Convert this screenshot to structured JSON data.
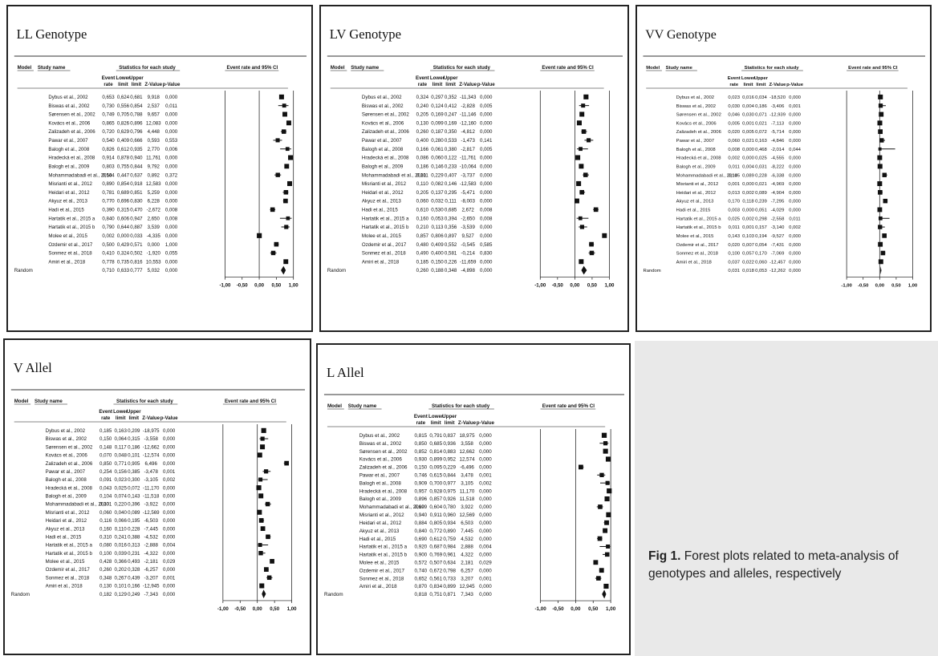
{
  "header": {
    "model": "Model",
    "study_name": "Study name",
    "stats_for_each_study": "Statistics for each study",
    "event_rate_ci": "Event rate and 95% CI",
    "col_event_rate": [
      "Event",
      "rate"
    ],
    "col_lower_limit": [
      "Lower",
      "limit"
    ],
    "col_upper_limit": [
      "Upper",
      "limit"
    ],
    "col_z": "Z-Value",
    "col_p": "p-Value",
    "random_label": "Random",
    "axis_ticks": [
      "-1,00",
      "-0,50",
      "0,00",
      "0,50",
      "1,00"
    ]
  },
  "caption": {
    "label": "Fig 1.",
    "text": "Forest plots related to meta-analysis of genotypes and alleles, respectively"
  },
  "chart_data": [
    {
      "type": "forest",
      "title": "LL Genotype",
      "xlim": [
        -1,
        1
      ],
      "studies": [
        [
          "Dybus et al., 2002",
          "0,653",
          "0,624",
          "0,681",
          "9,918",
          "0,000"
        ],
        [
          "Biswas et al., 2002",
          "0,730",
          "0,556",
          "0,854",
          "2,537",
          "0,011"
        ],
        [
          "Sørensen et al., 2002",
          "0,749",
          "0,705",
          "0,788",
          "9,657",
          "0,000"
        ],
        [
          "Kovács et al., 2006",
          "0,865",
          "0,826",
          "0,896",
          "12,083",
          "0,000"
        ],
        [
          "Zalizadeh et al., 2006",
          "0,720",
          "0,629",
          "0,796",
          "4,448",
          "0,000"
        ],
        [
          "Pawar et al., 2007",
          "0,540",
          "0,409",
          "0,666",
          "0,593",
          "0,553"
        ],
        [
          "Balogh et al., 2008",
          "0,826",
          "0,612",
          "0,935",
          "2,770",
          "0,006"
        ],
        [
          "Hradecká et al., 2008",
          "0,914",
          "0,878",
          "0,940",
          "11,761",
          "0,000"
        ],
        [
          "Balogh et al., 2009",
          "0,803",
          "0,755",
          "0,844",
          "9,792",
          "0,000"
        ],
        [
          "Mohammadabadi et al., 2010",
          "0,544",
          "0,447",
          "0,637",
          "0,892",
          "0,372"
        ],
        [
          "Misrianti et al., 2012",
          "0,890",
          "0,854",
          "0,918",
          "12,583",
          "0,000"
        ],
        [
          "Heidari et al., 2012",
          "0,781",
          "0,689",
          "0,851",
          "5,259",
          "0,000"
        ],
        [
          "Akyuz et al., 2013",
          "0,770",
          "0,696",
          "0,830",
          "6,228",
          "0,000"
        ],
        [
          "Hadi et al., 2015",
          "0,390",
          "0,315",
          "0,470",
          "-2,672",
          "0,008"
        ],
        [
          "Hartatik et al., 2015 a",
          "0,840",
          "0,606",
          "0,947",
          "2,650",
          "0,008"
        ],
        [
          "Hartatik et al., 2015 b",
          "0,790",
          "0,644",
          "0,887",
          "3,539",
          "0,000"
        ],
        [
          "Molee et al., 2015",
          "0,002",
          "0,000",
          "0,033",
          "-4,335",
          "0,000"
        ],
        [
          "Ozdemir et al., 2017",
          "0,500",
          "0,429",
          "0,571",
          "0,000",
          "1,000"
        ],
        [
          "Sonmez et al., 2018",
          "0,410",
          "0,324",
          "0,502",
          "-1,920",
          "0,055"
        ],
        [
          "Amiri et al., 2018",
          "0,778",
          "0,735",
          "0,816",
          "10,553",
          "0,000"
        ]
      ],
      "pooled": [
        "0,710",
        "0,633",
        "0,777",
        "5,032",
        "0,000"
      ]
    },
    {
      "type": "forest",
      "title": "LV Genotype",
      "xlim": [
        -1,
        1
      ],
      "studies": [
        [
          "Dybus et al., 2002",
          "0,324",
          "0,297",
          "0,352",
          "-11,343",
          "0,000"
        ],
        [
          "Biswas et al., 2002",
          "0,240",
          "0,124",
          "0,412",
          "-2,828",
          "0,005"
        ],
        [
          "Sørensen et al., 2002",
          "0,205",
          "0,169",
          "0,247",
          "-11,146",
          "0,000"
        ],
        [
          "Kovács et al., 2006",
          "0,130",
          "0,099",
          "0,169",
          "-12,160",
          "0,000"
        ],
        [
          "Zalizadeh et al., 2006",
          "0,260",
          "0,187",
          "0,350",
          "-4,812",
          "0,000"
        ],
        [
          "Pawar et al., 2007",
          "0,400",
          "0,280",
          "0,533",
          "-1,473",
          "0,141"
        ],
        [
          "Balogh et al., 2008",
          "0,166",
          "0,061",
          "0,380",
          "-2,817",
          "0,005"
        ],
        [
          "Hradecká et al., 2008",
          "0,086",
          "0,060",
          "0,122",
          "-11,761",
          "0,000"
        ],
        [
          "Balogh et al., 2009",
          "0,186",
          "0,146",
          "0,233",
          "-10,064",
          "0,000"
        ],
        [
          "Mohammadabadi et al., 2010",
          "0,311",
          "0,229",
          "0,407",
          "-3,737",
          "0,000"
        ],
        [
          "Misrianti et al., 2012",
          "0,110",
          "0,082",
          "0,146",
          "-12,583",
          "0,000"
        ],
        [
          "Heidari et al., 2012",
          "0,205",
          "0,137",
          "0,295",
          "-5,471",
          "0,000"
        ],
        [
          "Akyuz et al., 2013",
          "0,060",
          "0,032",
          "0,111",
          "-8,003",
          "0,000"
        ],
        [
          "Hadi et al., 2015",
          "0,610",
          "0,530",
          "0,685",
          "2,672",
          "0,008"
        ],
        [
          "Hartatik et al., 2015 a",
          "0,160",
          "0,053",
          "0,394",
          "-2,650",
          "0,008"
        ],
        [
          "Hartatik et al., 2015 b",
          "0,210",
          "0,113",
          "0,356",
          "-3,539",
          "0,000"
        ],
        [
          "Molee et al., 2015",
          "0,857",
          "0,806",
          "0,897",
          "9,527",
          "0,000"
        ],
        [
          "Ozdemir et al., 2017",
          "0,480",
          "0,409",
          "0,552",
          "-0,545",
          "0,585"
        ],
        [
          "Sonmez et al., 2018",
          "0,490",
          "0,400",
          "0,581",
          "-0,214",
          "0,830"
        ],
        [
          "Amiri et al., 2018",
          "0,185",
          "0,150",
          "0,226",
          "-11,659",
          "0,000"
        ]
      ],
      "pooled": [
        "0,260",
        "0,188",
        "0,348",
        "-4,898",
        "0,000"
      ]
    },
    {
      "type": "forest",
      "title": "VV Genotype",
      "xlim": [
        -1,
        1
      ],
      "studies": [
        [
          "Dybus et al., 2002",
          "0,023",
          "0,016",
          "0,034",
          "-18,520",
          "0,000"
        ],
        [
          "Biswas et al., 2002",
          "0,030",
          "0,004",
          "0,186",
          "-3,406",
          "0,001"
        ],
        [
          "Sørensen et al., 2002",
          "0,046",
          "0,030",
          "0,071",
          "-12,939",
          "0,000"
        ],
        [
          "Kovács et al., 2006",
          "0,005",
          "0,001",
          "0,021",
          "-7,113",
          "0,000"
        ],
        [
          "Zalizadeh et al., 2006",
          "0,020",
          "0,005",
          "0,072",
          "-5,714",
          "0,000"
        ],
        [
          "Pawar et al., 2007",
          "0,060",
          "0,021",
          "0,163",
          "-4,846",
          "0,000"
        ],
        [
          "Balogh et al., 2008",
          "0,008",
          "0,000",
          "0,468",
          "-2,014",
          "0,044"
        ],
        [
          "Hradecká et al., 2008",
          "0,002",
          "0,000",
          "0,025",
          "-4,555",
          "0,000"
        ],
        [
          "Balogh et al., 2009",
          "0,011",
          "0,004",
          "0,031",
          "-8,222",
          "0,000"
        ],
        [
          "Mohammadabadi et al., 2010",
          "0,145",
          "0,089",
          "0,228",
          "-6,338",
          "0,000"
        ],
        [
          "Misrianti et al., 2012",
          "0,001",
          "0,000",
          "0,021",
          "-4,969",
          "0,000"
        ],
        [
          "Heidari et al., 2012",
          "0,013",
          "0,002",
          "0,089",
          "-4,904",
          "0,000"
        ],
        [
          "Akyuz et al., 2013",
          "0,170",
          "0,118",
          "0,239",
          "-7,295",
          "0,000"
        ],
        [
          "Hadi et al., 2015",
          "0,003",
          "0,000",
          "0,051",
          "-4,029",
          "0,000"
        ],
        [
          "Hartatik et al., 2015 a",
          "0,025",
          "0,002",
          "0,298",
          "-2,558",
          "0,011"
        ],
        [
          "Hartatik et al., 2015 b",
          "0,011",
          "0,001",
          "0,157",
          "-3,140",
          "0,002"
        ],
        [
          "Molee et al., 2015",
          "0,143",
          "0,103",
          "0,194",
          "-9,527",
          "0,000"
        ],
        [
          "Ozdemir et al., 2017",
          "0,020",
          "0,007",
          "0,054",
          "-7,431",
          "0,000"
        ],
        [
          "Sonmez et al., 2018",
          "0,100",
          "0,057",
          "0,170",
          "-7,069",
          "0,000"
        ],
        [
          "Amiri et al., 2018",
          "0,037",
          "0,022",
          "0,060",
          "-12,457",
          "0,000"
        ]
      ],
      "pooled": [
        "0,031",
        "0,018",
        "0,053",
        "-12,262",
        "0,000"
      ]
    },
    {
      "type": "forest",
      "title": "V Allel",
      "xlim": [
        -1,
        1
      ],
      "studies": [
        [
          "Dybus et al., 2002",
          "0,185",
          "0,163",
          "0,209",
          "-18,975",
          "0,000"
        ],
        [
          "Biswas et al., 2002",
          "0,150",
          "0,064",
          "0,315",
          "-3,558",
          "0,000"
        ],
        [
          "Sørensen et al., 2002",
          "0,148",
          "0,117",
          "0,186",
          "-12,662",
          "0,000"
        ],
        [
          "Kovács et al., 2006",
          "0,070",
          "0,048",
          "0,101",
          "-12,574",
          "0,000"
        ],
        [
          "Zalizadeh et al., 2006",
          "0,850",
          "0,771",
          "0,905",
          "6,496",
          "0,000"
        ],
        [
          "Pawar et al., 2007",
          "0,254",
          "0,156",
          "0,385",
          "-3,478",
          "0,001"
        ],
        [
          "Balogh et al., 2008",
          "0,091",
          "0,023",
          "0,300",
          "-3,105",
          "0,002"
        ],
        [
          "Hradecká et al., 2008",
          "0,043",
          "0,025",
          "0,072",
          "-11,170",
          "0,000"
        ],
        [
          "Balogh et al., 2009",
          "0,104",
          "0,074",
          "0,143",
          "-11,518",
          "0,000"
        ],
        [
          "Mohammadabadi et al., 2010",
          "0,301",
          "0,220",
          "0,396",
          "-3,922",
          "0,000"
        ],
        [
          "Misrianti et al., 2012",
          "0,060",
          "0,040",
          "0,089",
          "-12,569",
          "0,000"
        ],
        [
          "Heidari et al., 2012",
          "0,116",
          "0,066",
          "0,195",
          "-6,503",
          "0,000"
        ],
        [
          "Akyuz et al., 2013",
          "0,160",
          "0,110",
          "0,228",
          "-7,445",
          "0,000"
        ],
        [
          "Hadi et al., 2015",
          "0,310",
          "0,241",
          "0,388",
          "-4,532",
          "0,000"
        ],
        [
          "Hartatik et al., 2015 a",
          "0,080",
          "0,016",
          "0,313",
          "-2,888",
          "0,004"
        ],
        [
          "Hartatik et al., 2015 b",
          "0,100",
          "0,039",
          "0,231",
          "-4,322",
          "0,000"
        ],
        [
          "Molee et al., 2015",
          "0,428",
          "0,366",
          "0,493",
          "-2,181",
          "0,029"
        ],
        [
          "Ozdemir et al., 2017",
          "0,260",
          "0,202",
          "0,328",
          "-6,257",
          "0,000"
        ],
        [
          "Sonmez et al., 2018",
          "0,348",
          "0,267",
          "0,439",
          "-3,207",
          "0,001"
        ],
        [
          "Amiri et al., 2018",
          "0,130",
          "0,101",
          "0,166",
          "-12,945",
          "0,000"
        ]
      ],
      "pooled": [
        "0,182",
        "0,129",
        "0,249",
        "-7,343",
        "0,000"
      ]
    },
    {
      "type": "forest",
      "title": "L Allel",
      "xlim": [
        -1,
        1
      ],
      "studies": [
        [
          "Dybus et al., 2002",
          "0,815",
          "0,791",
          "0,837",
          "18,975",
          "0,000"
        ],
        [
          "Biswas et al., 2002",
          "0,850",
          "0,685",
          "0,936",
          "3,558",
          "0,000"
        ],
        [
          "Sørensen et al., 2002",
          "0,852",
          "0,814",
          "0,883",
          "12,662",
          "0,000"
        ],
        [
          "Kovács et al., 2006",
          "0,930",
          "0,899",
          "0,952",
          "12,574",
          "0,000"
        ],
        [
          "Zalizadeh et al., 2006",
          "0,150",
          "0,095",
          "0,229",
          "-6,496",
          "0,000"
        ],
        [
          "Pawar et al., 2007",
          "0,746",
          "0,615",
          "0,844",
          "3,478",
          "0,001"
        ],
        [
          "Balogh et al., 2008",
          "0,909",
          "0,700",
          "0,977",
          "3,105",
          "0,002"
        ],
        [
          "Hradecká et al., 2008",
          "0,957",
          "0,928",
          "0,975",
          "11,170",
          "0,000"
        ],
        [
          "Balogh et al., 2009",
          "0,896",
          "0,857",
          "0,926",
          "11,518",
          "0,000"
        ],
        [
          "Mohammadabadi et al., 2010",
          "0,699",
          "0,604",
          "0,780",
          "3,922",
          "0,000"
        ],
        [
          "Misrianti et al., 2012",
          "0,940",
          "0,911",
          "0,960",
          "12,569",
          "0,000"
        ],
        [
          "Heidari et al., 2012",
          "0,884",
          "0,805",
          "0,934",
          "6,503",
          "0,000"
        ],
        [
          "Akyuz et al., 2013",
          "0,840",
          "0,772",
          "0,890",
          "7,445",
          "0,000"
        ],
        [
          "Hadi et al., 2015",
          "0,690",
          "0,612",
          "0,759",
          "4,532",
          "0,000"
        ],
        [
          "Hartatik et al., 2015 a",
          "0,920",
          "0,687",
          "0,984",
          "2,888",
          "0,004"
        ],
        [
          "Hartatik et al., 2015 b",
          "0,900",
          "0,769",
          "0,961",
          "4,322",
          "0,000"
        ],
        [
          "Molee et al., 2015",
          "0,572",
          "0,507",
          "0,634",
          "2,181",
          "0,029"
        ],
        [
          "Ozdemir et al., 2017",
          "0,740",
          "0,672",
          "0,798",
          "6,257",
          "0,000"
        ],
        [
          "Sonmez et al., 2018",
          "0,652",
          "0,561",
          "0,733",
          "3,207",
          "0,001"
        ],
        [
          "Amiri et al., 2018",
          "0,870",
          "0,834",
          "0,899",
          "12,945",
          "0,000"
        ]
      ],
      "pooled": [
        "0,818",
        "0,751",
        "0,871",
        "7,343",
        "0,000"
      ]
    }
  ]
}
